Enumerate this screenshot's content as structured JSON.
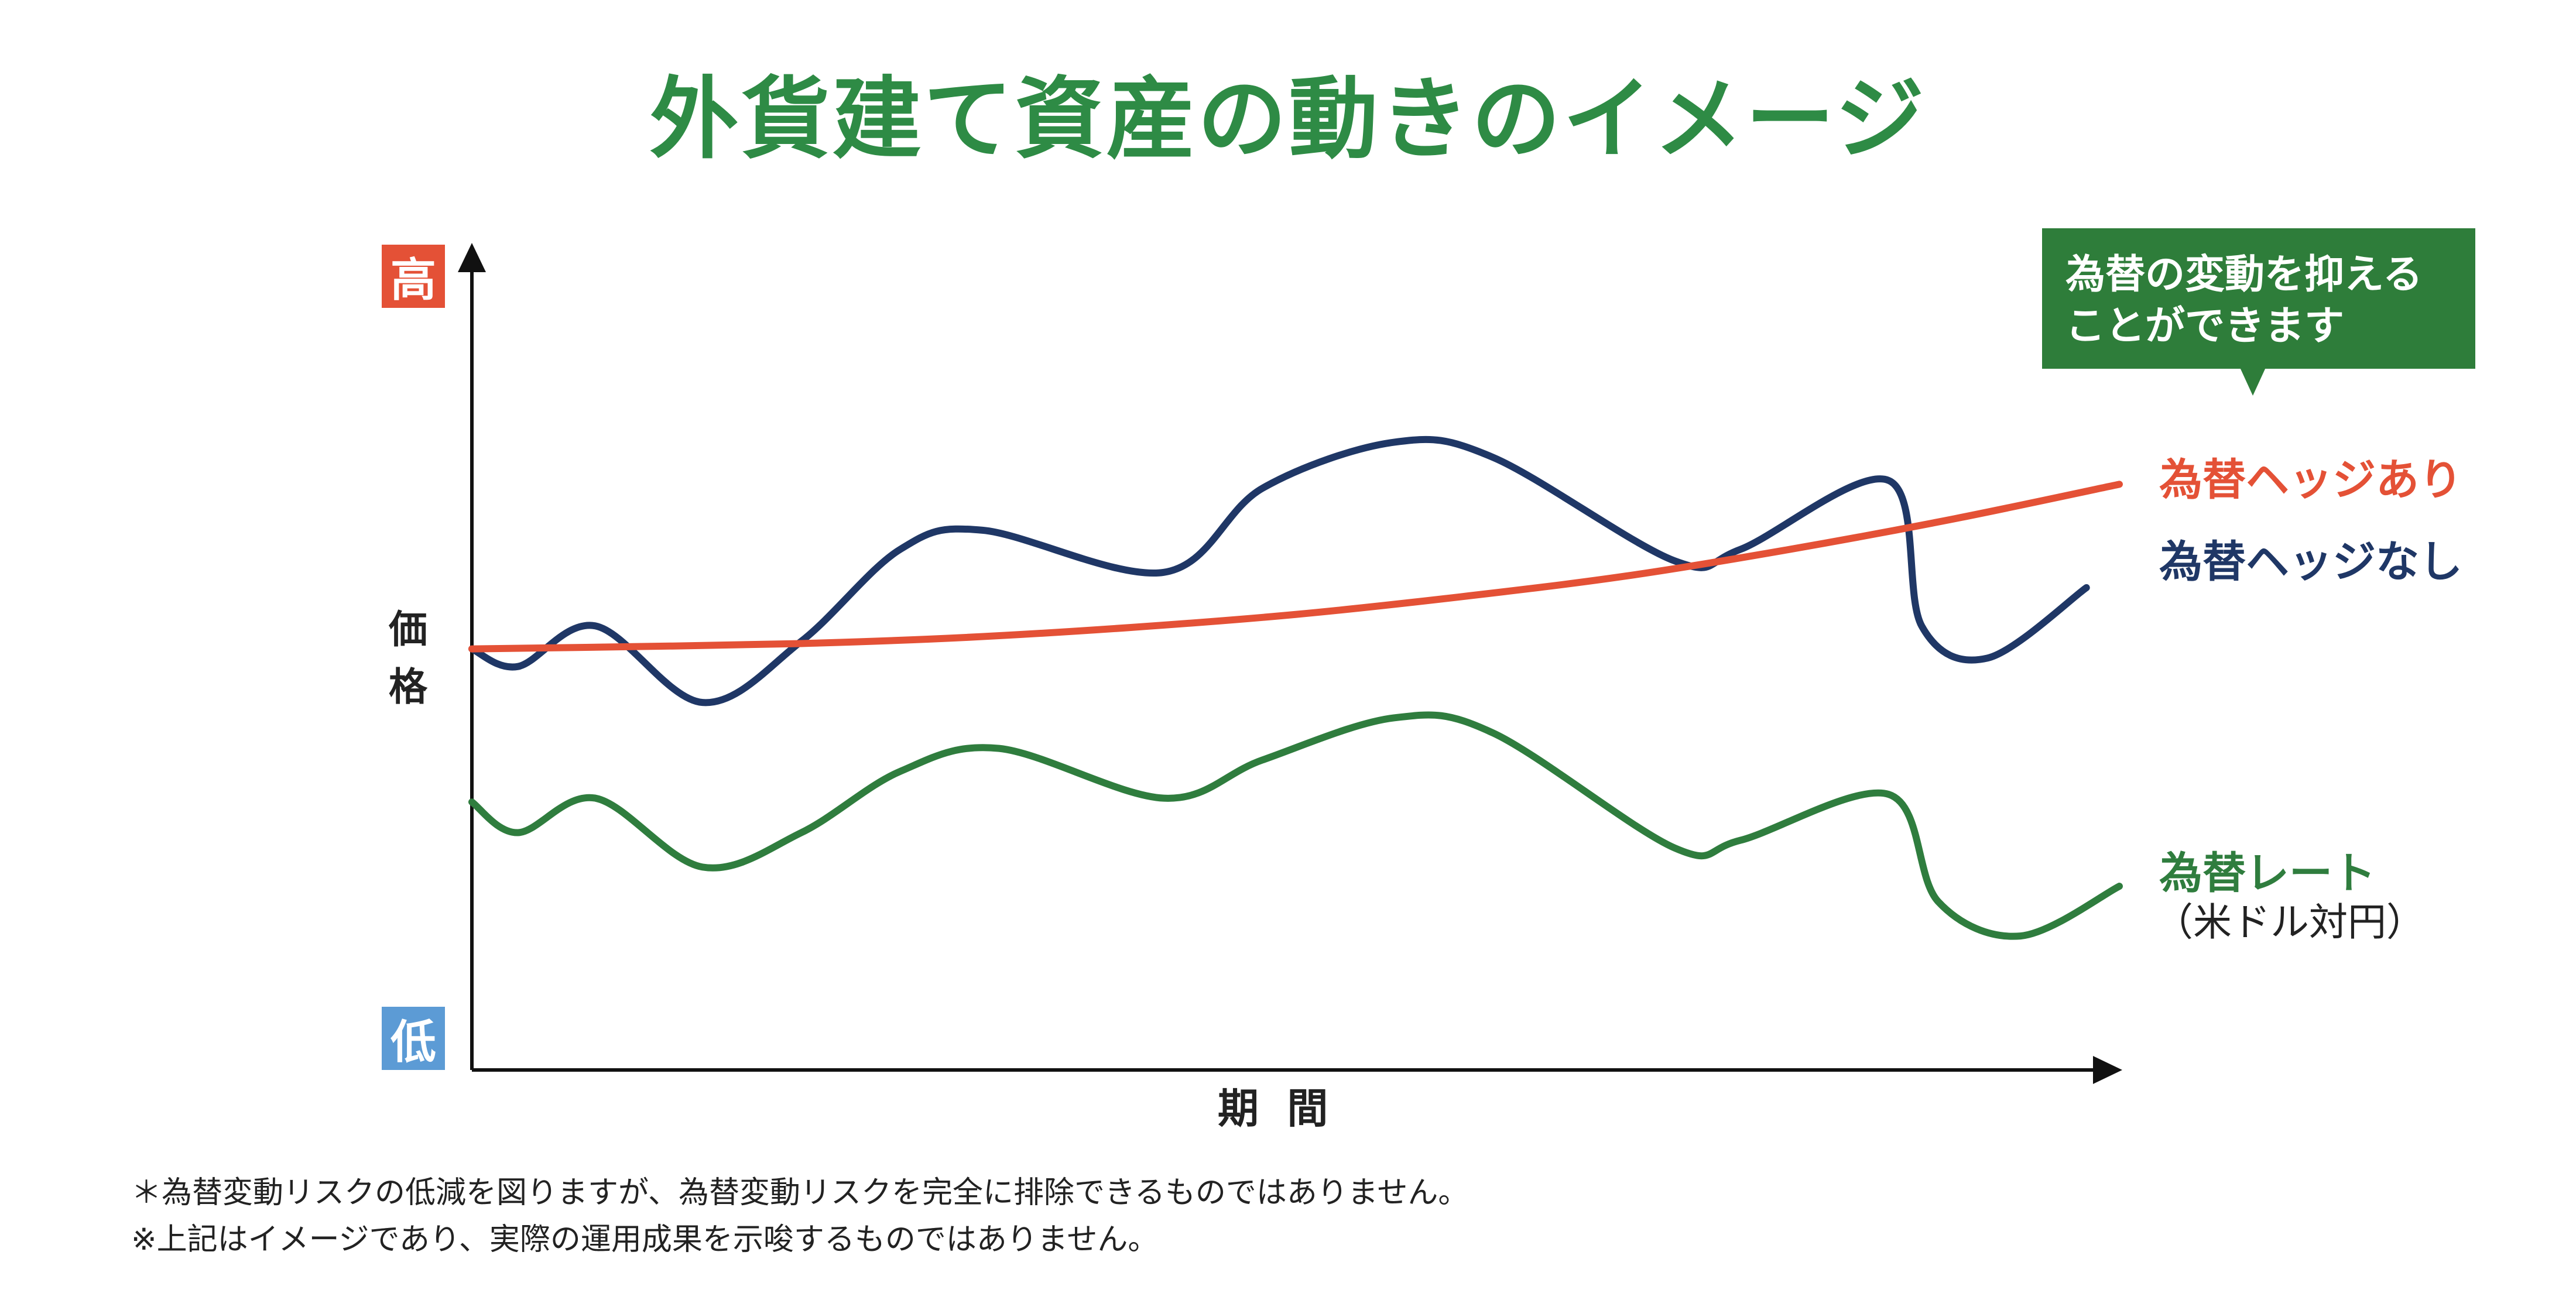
{
  "title": "外貨建て資産の動きのイメージ",
  "colors": {
    "title": "#2e8b45",
    "hedged": "#e45136",
    "unhedged": "#1f3766",
    "fx": "#2f7d3e",
    "high_badge": "#e45136",
    "low_badge": "#5c9bd5",
    "callout": "#2e7d3a"
  },
  "axes": {
    "y_label": [
      "価",
      "格"
    ],
    "y_high": "高",
    "y_low": "低",
    "x_label": "期 間"
  },
  "callout": {
    "lines": [
      "為替の変動を抑える",
      "ことができます"
    ]
  },
  "legend": {
    "hedged": "為替ヘッジあり",
    "unhedged": "為替ヘッジなし",
    "fx": "為替レート",
    "fx_sub": "（米ドル対円）"
  },
  "notes": [
    "＊為替変動リスクの低減を図りますが、為替変動リスクを完全に排除できるものではありません。",
    "※上記はイメージであり、実際の運用成果を示唆するものではありません。"
  ],
  "chart_data": {
    "type": "line",
    "xlabel": "期 間",
    "ylabel": "価格",
    "xlim": [
      0,
      100
    ],
    "ylim": [
      0,
      100
    ],
    "grid": false,
    "legend_placement": "right",
    "series": [
      {
        "name": "為替ヘッジあり",
        "color": "#e45136",
        "points": [
          [
            0,
            55
          ],
          [
            10,
            55.3
          ],
          [
            20,
            55.7
          ],
          [
            30,
            56.5
          ],
          [
            40,
            57.8
          ],
          [
            50,
            59.5
          ],
          [
            60,
            61.8
          ],
          [
            70,
            64.5
          ],
          [
            80,
            68
          ],
          [
            90,
            72
          ],
          [
            100,
            76.5
          ]
        ]
      },
      {
        "name": "為替ヘッジなし",
        "color": "#1f3766",
        "points": [
          [
            0,
            55
          ],
          [
            2.8,
            52.7
          ],
          [
            7.5,
            58
          ],
          [
            14,
            48
          ],
          [
            20,
            56
          ],
          [
            26,
            68
          ],
          [
            31,
            70.5
          ],
          [
            42,
            65
          ],
          [
            48,
            76
          ],
          [
            56,
            82
          ],
          [
            62,
            80
          ],
          [
            73,
            66.5
          ],
          [
            77,
            68
          ],
          [
            86,
            77
          ],
          [
            88,
            58
          ],
          [
            92,
            53.8
          ],
          [
            98,
            63
          ]
        ]
      },
      {
        "name": "為替レート",
        "color": "#2f7d3e",
        "points": [
          [
            0,
            35
          ],
          [
            2.8,
            31
          ],
          [
            7.5,
            35.5
          ],
          [
            14,
            26.5
          ],
          [
            20,
            31
          ],
          [
            26,
            39
          ],
          [
            32,
            42
          ],
          [
            42,
            35.5
          ],
          [
            48,
            40.5
          ],
          [
            56,
            46
          ],
          [
            62,
            44
          ],
          [
            73,
            29
          ],
          [
            77,
            30
          ],
          [
            86,
            36
          ],
          [
            89,
            22
          ],
          [
            94,
            17.5
          ],
          [
            100,
            24
          ]
        ]
      }
    ]
  }
}
